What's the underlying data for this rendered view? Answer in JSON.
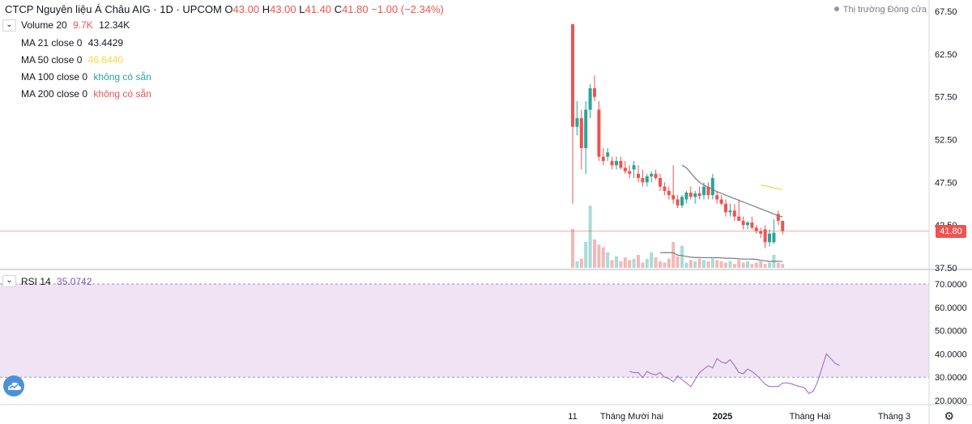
{
  "header": {
    "symbol": "CTCP Nguyên liệu Á Châu AIG · 1D · UPCOM",
    "o_label": "O",
    "o_value": "43.00",
    "h_label": "H",
    "h_value": "43.00",
    "l_label": "L",
    "l_value": "41.40",
    "c_label": "C",
    "c_value": "41.80",
    "change": "−1.00 (−2.34%)"
  },
  "market_status": "Thị trường Đóng cửa",
  "last_price": "41.80",
  "studies": {
    "volume": {
      "name": "Volume 20",
      "v1": "9.7K",
      "v2": "12.34K"
    },
    "ma21": {
      "name": "MA 21 close 0",
      "value": "43.4429"
    },
    "ma50": {
      "name": "MA 50 close 0",
      "value": "46.6440"
    },
    "ma100": {
      "name": "MA 100 close 0",
      "value": "không có sẵn"
    },
    "ma200": {
      "name": "MA 200 close 0",
      "value": "không có sẵn"
    },
    "rsi": {
      "name": "RSI 14",
      "value": "35.0742"
    }
  },
  "colors": {
    "up": "#26a69a",
    "down": "#ef5350",
    "vol_up": "#a7dcd5",
    "vol_down": "#f2b8b7",
    "ma21": "#787b86",
    "ma50": "#f5d742",
    "rsi_line": "#9c5fd0",
    "rsi_band": "#f0e4f4"
  },
  "chart_data": [
    {
      "type": "candlestick",
      "price_axis_ticks": [
        "67.50",
        "62.50",
        "57.50",
        "52.50",
        "47.50",
        "42.50",
        "37.50"
      ],
      "ylim": [
        37.5,
        67.5
      ],
      "time_axis_labels": [
        "11",
        "Tháng Mười hai",
        "2025",
        "Tháng Hai",
        "Tháng 3"
      ],
      "candles": [
        {
          "o": 66.0,
          "h": 66.0,
          "l": 45.0,
          "c": 54.0
        },
        {
          "o": 54.0,
          "h": 57.0,
          "l": 53.0,
          "c": 55.0
        },
        {
          "o": 55.0,
          "h": 56.0,
          "l": 49.0,
          "c": 51.5
        },
        {
          "o": 51.5,
          "h": 57.0,
          "l": 48.5,
          "c": 56.0
        },
        {
          "o": 56.0,
          "h": 59.0,
          "l": 55.0,
          "c": 58.5
        },
        {
          "o": 58.5,
          "h": 60.0,
          "l": 57.0,
          "c": 57.5
        },
        {
          "o": 56.0,
          "h": 57.0,
          "l": 50.0,
          "c": 50.5
        },
        {
          "o": 50.5,
          "h": 51.5,
          "l": 49.5,
          "c": 50.0
        },
        {
          "o": 50.5,
          "h": 51.5,
          "l": 50.0,
          "c": 51.0
        },
        {
          "o": 50.0,
          "h": 50.5,
          "l": 49.0,
          "c": 49.5
        },
        {
          "o": 49.5,
          "h": 50.5,
          "l": 49.0,
          "c": 50.0
        },
        {
          "o": 50.0,
          "h": 50.5,
          "l": 49.0,
          "c": 49.2
        },
        {
          "o": 49.2,
          "h": 50.0,
          "l": 48.5,
          "c": 48.8
        },
        {
          "o": 48.8,
          "h": 49.5,
          "l": 48.0,
          "c": 48.5
        },
        {
          "o": 49.0,
          "h": 50.0,
          "l": 48.0,
          "c": 49.5
        },
        {
          "o": 48.5,
          "h": 49.5,
          "l": 47.5,
          "c": 48.0
        },
        {
          "o": 48.0,
          "h": 49.0,
          "l": 47.0,
          "c": 47.5
        },
        {
          "o": 47.5,
          "h": 48.5,
          "l": 47.0,
          "c": 48.2
        },
        {
          "o": 48.2,
          "h": 48.8,
          "l": 47.5,
          "c": 48.5
        },
        {
          "o": 48.5,
          "h": 49.0,
          "l": 47.8,
          "c": 48.0
        },
        {
          "o": 48.0,
          "h": 48.5,
          "l": 46.5,
          "c": 47.0
        },
        {
          "o": 47.0,
          "h": 47.5,
          "l": 46.0,
          "c": 46.5
        },
        {
          "o": 46.5,
          "h": 47.0,
          "l": 45.5,
          "c": 46.0
        },
        {
          "o": 46.0,
          "h": 49.5,
          "l": 45.0,
          "c": 45.5
        },
        {
          "o": 45.5,
          "h": 46.0,
          "l": 44.5,
          "c": 44.8
        },
        {
          "o": 44.8,
          "h": 46.0,
          "l": 44.5,
          "c": 45.8
        },
        {
          "o": 45.5,
          "h": 46.5,
          "l": 45.0,
          "c": 46.3
        },
        {
          "o": 46.3,
          "h": 47.0,
          "l": 45.5,
          "c": 45.8
        },
        {
          "o": 45.8,
          "h": 46.5,
          "l": 45.0,
          "c": 46.2
        },
        {
          "o": 46.2,
          "h": 47.0,
          "l": 45.5,
          "c": 45.9
        },
        {
          "o": 46.0,
          "h": 47.5,
          "l": 45.5,
          "c": 47.0
        },
        {
          "o": 47.0,
          "h": 47.5,
          "l": 45.5,
          "c": 46.0
        },
        {
          "o": 46.0,
          "h": 48.5,
          "l": 45.5,
          "c": 48.0
        },
        {
          "o": 46.0,
          "h": 46.5,
          "l": 45.0,
          "c": 45.5
        },
        {
          "o": 45.5,
          "h": 46.0,
          "l": 44.8,
          "c": 45.0
        },
        {
          "o": 45.0,
          "h": 45.5,
          "l": 43.5,
          "c": 44.0
        },
        {
          "o": 44.0,
          "h": 45.0,
          "l": 43.5,
          "c": 44.2
        },
        {
          "o": 44.2,
          "h": 45.0,
          "l": 43.0,
          "c": 43.5
        },
        {
          "o": 43.5,
          "h": 45.5,
          "l": 43.0,
          "c": 43.0
        },
        {
          "o": 43.0,
          "h": 43.5,
          "l": 42.0,
          "c": 42.5
        },
        {
          "o": 42.5,
          "h": 43.0,
          "l": 42.0,
          "c": 42.8
        },
        {
          "o": 42.8,
          "h": 43.5,
          "l": 42.0,
          "c": 42.2
        },
        {
          "o": 42.2,
          "h": 42.5,
          "l": 41.5,
          "c": 41.8
        },
        {
          "o": 41.8,
          "h": 42.2,
          "l": 41.0,
          "c": 41.5
        },
        {
          "o": 42.0,
          "h": 42.5,
          "l": 39.8,
          "c": 40.5
        },
        {
          "o": 40.5,
          "h": 42.0,
          "l": 40.0,
          "c": 41.5
        },
        {
          "o": 40.5,
          "h": 43.2,
          "l": 40.3,
          "c": 41.6
        },
        {
          "o": 43.8,
          "h": 44.2,
          "l": 42.5,
          "c": 43.0
        },
        {
          "o": 43.0,
          "h": 43.0,
          "l": 41.4,
          "c": 41.8
        }
      ],
      "volume_relative": [
        0.3,
        0.05,
        0.07,
        0.2,
        0.48,
        0.22,
        0.18,
        0.16,
        0.12,
        0.06,
        0.09,
        0.05,
        0.08,
        0.06,
        0.07,
        0.1,
        0.04,
        0.07,
        0.12,
        0.08,
        0.05,
        0.04,
        0.07,
        0.2,
        0.09,
        0.17,
        0.04,
        0.06,
        0.05,
        0.07,
        0.06,
        0.05,
        0.07,
        0.06,
        0.05,
        0.04,
        0.05,
        0.03,
        0.06,
        0.04,
        0.05,
        0.03,
        0.04,
        0.05,
        0.03,
        0.04,
        0.1,
        0.04,
        0.03
      ],
      "ma21": [
        49.5,
        49.2,
        48.6,
        48.0,
        47.5,
        47.2,
        46.9,
        46.7,
        46.4,
        46.2,
        46.0,
        45.8,
        45.6,
        45.4,
        45.2,
        45.0,
        44.8,
        44.6,
        44.4,
        44.2,
        44.0,
        43.8,
        43.6,
        43.44
      ],
      "ma50": [
        47.2,
        46.64
      ]
    },
    {
      "type": "line",
      "name": "RSI 14",
      "value_axis_ticks": [
        "70.0000",
        "60.0000",
        "50.0000",
        "40.0000",
        "30.0000",
        "20.0000"
      ],
      "ylim": [
        18,
        72
      ],
      "band": [
        30,
        70
      ],
      "values": [
        32.5,
        32,
        32,
        29.8,
        32.5,
        31.5,
        31,
        32,
        30,
        29.5,
        28,
        30.5,
        29,
        27.5,
        26,
        29,
        32,
        33.5,
        35,
        34,
        38,
        36.5,
        36,
        37.5,
        35,
        32,
        31.5,
        33.5,
        32.5,
        31,
        29,
        27,
        26,
        26,
        26,
        27.5,
        27.6,
        27.2,
        26.5,
        26,
        25.5,
        23,
        24,
        28,
        34,
        40,
        38,
        36,
        35.07
      ]
    }
  ]
}
